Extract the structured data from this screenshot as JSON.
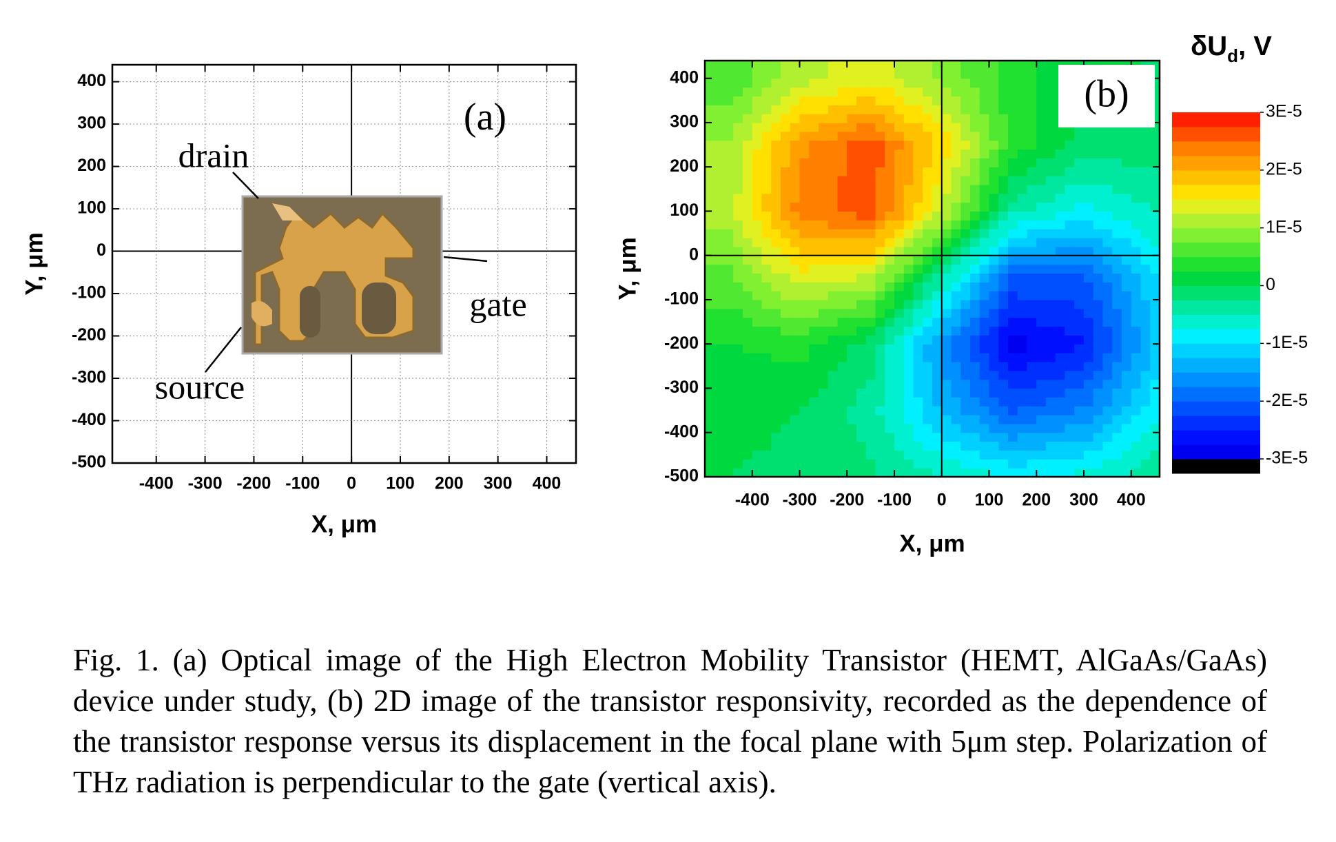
{
  "chart_data": [
    {
      "type": "image",
      "panel_label": "(a)",
      "xlabel": "X, μm",
      "ylabel": "Y, μm",
      "xlim": [
        -490,
        460
      ],
      "ylim": [
        -500,
        440
      ],
      "xticks": [
        -400,
        -300,
        -200,
        -100,
        0,
        100,
        200,
        300,
        400
      ],
      "yticks": [
        -500,
        -400,
        -300,
        -200,
        -100,
        0,
        100,
        200,
        300,
        400
      ],
      "grid": true,
      "crosshair": true,
      "annotations": [
        "drain",
        "gate",
        "source"
      ]
    },
    {
      "type": "contour",
      "panel_label": "(b)",
      "xlabel": "X, μm",
      "ylabel": "Y, μm",
      "xlim": [
        -500,
        460
      ],
      "ylim": [
        -500,
        440
      ],
      "xticks": [
        -400,
        -300,
        -200,
        -100,
        0,
        100,
        200,
        300,
        400
      ],
      "yticks": [
        -500,
        -400,
        -300,
        -200,
        -100,
        0,
        100,
        200,
        300,
        400
      ],
      "grid": false,
      "crosshair": true,
      "x": [
        -450,
        -300,
        -150,
        0,
        150,
        300,
        450
      ],
      "y": [
        400,
        250,
        100,
        -50,
        -200,
        -350,
        -500
      ],
      "z": [
        [
          5.3e-06,
          1.15e-05,
          1.4e-05,
          9.5e-06,
          3.4e-06,
          5e-07,
          -1e-07
        ],
        [
          1.02e-05,
          2.19e-05,
          2.64e-05,
          1.68e-05,
          4.2e-06,
          -1.1e-06,
          -1.1e-06
        ],
        [
          1.12e-05,
          2.36e-05,
          2.67e-05,
          1.26e-05,
          -4e-06,
          -8.5e-06,
          -4.8e-06
        ],
        [
          6.9e-06,
          1.38e-05,
          1.21e-05,
          -4.2e-06,
          -2.04e-05,
          -2.04e-05,
          -1.03e-05
        ],
        [
          2.3e-06,
          3.7e-06,
          -1.2e-06,
          -1.58e-05,
          -2.85e-05,
          -2.52e-05,
          -1.23e-05
        ],
        [
          4e-07,
          0,
          -3.9e-06,
          -1.28e-05,
          -2.01e-05,
          -1.72e-05,
          -8.3e-06
        ],
        [
          0,
          -3e-07,
          -1.9e-06,
          -5.2e-06,
          -7.8e-06,
          -6.6e-06,
          -3.2e-06
        ]
      ],
      "zlim": [
        -3.25e-05,
        3e-05
      ],
      "colors": [
        "#000000",
        "#0000f0",
        "#0010ff",
        "#0030ff",
        "#0050ff",
        "#0070ff",
        "#0090ff",
        "#00b0ff",
        "#00d0ff",
        "#00f0ff",
        "#00f0d0",
        "#00e8a0",
        "#00e070",
        "#00d840",
        "#20e030",
        "#50e830",
        "#80f030",
        "#b0f030",
        "#e0f020",
        "#ffe000",
        "#ffc000",
        "#ffa000",
        "#ff8000",
        "#ff5000",
        "#ff2000"
      ],
      "colorbar_title": {
        "main": "δU",
        "sub": "d",
        "rest": ", V"
      },
      "colorbar_ticks": [
        {
          "value": 3e-05,
          "label": "3E-5"
        },
        {
          "value": 2e-05,
          "label": "2E-5"
        },
        {
          "value": 1e-05,
          "label": "1E-5"
        },
        0,
        {
          "value": -1e-05,
          "label": "-1E-5"
        },
        {
          "value": -2e-05,
          "label": "-2E-5"
        },
        {
          "value": -3e-05,
          "label": "-3E-5"
        }
      ]
    }
  ],
  "caption": "Fig. 1. (a) Optical image of the High Electron Mobility Transistor (HEMT, AlGaAs/GaAs) device under study, (b) 2D image of the transistor responsivity, recorded as the dependence of the transistor response versus its displacement in the focal plane with 5μm step. Polarization of THz radiation is perpendicular to the gate (vertical axis)."
}
